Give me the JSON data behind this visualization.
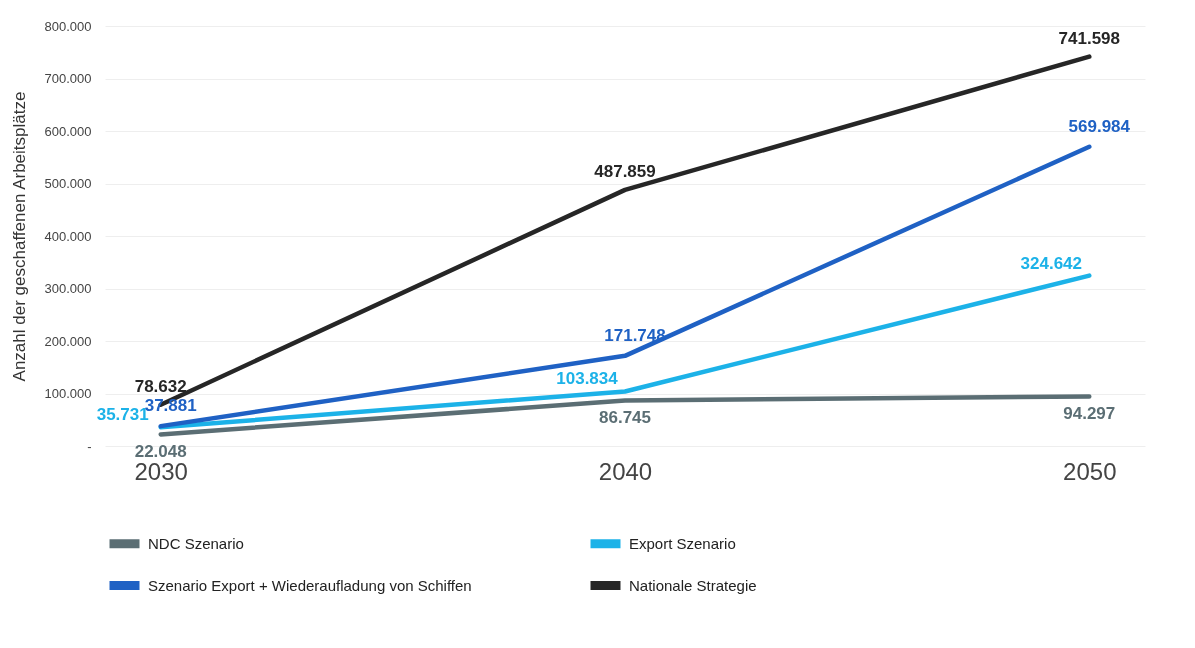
{
  "chart_data": {
    "type": "line",
    "ylabel": "Anzahl der geschaffenen Arbeitsplätze",
    "categories": [
      "2030",
      "2040",
      "2050"
    ],
    "series": [
      {
        "name": "NDC Szenario",
        "color": "#5b6e74",
        "values": [
          22048,
          86745,
          94297
        ],
        "value_labels": [
          "22.048",
          "86.745",
          "94.297"
        ]
      },
      {
        "name": "Export Szenario",
        "color": "#1cb2e8",
        "values": [
          35731,
          103834,
          324642
        ],
        "value_labels": [
          "35.731",
          "103.834",
          "324.642"
        ]
      },
      {
        "name": "Szenario Export + Wiederaufladung von Schiffen",
        "color": "#1f61c4",
        "values": [
          37881,
          171748,
          569984
        ],
        "value_labels": [
          "37.881",
          "171.748",
          "569.984"
        ]
      },
      {
        "name": "Nationale Strategie",
        "color": "#262626",
        "values": [
          78632,
          487859,
          741598
        ],
        "value_labels": [
          "78.632",
          "487.859",
          "741.598"
        ]
      }
    ],
    "ylim": [
      0,
      800000
    ],
    "yticks": [
      {
        "value": 0,
        "label": "-"
      },
      {
        "value": 100000,
        "label": "100.000"
      },
      {
        "value": 200000,
        "label": "200.000"
      },
      {
        "value": 300000,
        "label": "300.000"
      },
      {
        "value": 400000,
        "label": "400.000"
      },
      {
        "value": 500000,
        "label": "500.000"
      },
      {
        "value": 600000,
        "label": "600.000"
      },
      {
        "value": 700000,
        "label": "700.000"
      },
      {
        "value": 800000,
        "label": "800.000"
      }
    ],
    "grid": "y",
    "legend": "bottom",
    "marker": "none",
    "line_style": "solid"
  }
}
